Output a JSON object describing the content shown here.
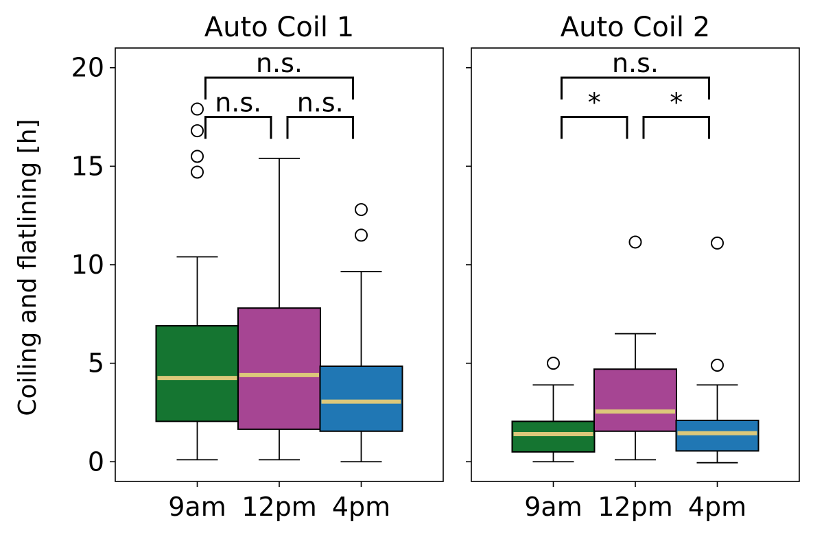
{
  "chart_data": [
    {
      "type": "box",
      "title": "Auto Coil 1",
      "ylabel": "Coiling and flatlining [h]",
      "ylim": [
        -1,
        21
      ],
      "yticks": [
        0,
        5,
        10,
        15,
        20
      ],
      "categories": [
        "9am",
        "12pm",
        "4pm"
      ],
      "box_colors": [
        "#157531",
        "#a64593",
        "#2077b4"
      ],
      "median_color": "#dcc87a",
      "boxes": [
        {
          "category": "9am",
          "whisker_low": 0.1,
          "q1": 2.05,
          "median": 4.25,
          "q3": 6.9,
          "whisker_high": 10.4,
          "outliers": [
            14.7,
            15.5,
            16.8,
            17.9
          ]
        },
        {
          "category": "12pm",
          "whisker_low": 0.1,
          "q1": 1.65,
          "median": 4.4,
          "q3": 7.8,
          "whisker_high": 15.4,
          "outliers": []
        },
        {
          "category": "4pm",
          "whisker_low": 0.0,
          "q1": 1.55,
          "median": 3.05,
          "q3": 4.85,
          "whisker_high": 9.65,
          "outliers": [
            11.5,
            12.8
          ]
        }
      ],
      "brackets": [
        {
          "from": 0,
          "to": 1,
          "y": 17.5,
          "label": "n.s."
        },
        {
          "from": 1,
          "to": 2,
          "y": 17.5,
          "label": "n.s."
        },
        {
          "from": 0,
          "to": 2,
          "y": 19.5,
          "label": "n.s."
        }
      ]
    },
    {
      "type": "box",
      "title": "Auto Coil 2",
      "ylim": [
        -1,
        21
      ],
      "yticks": [
        0,
        5,
        10,
        15,
        20
      ],
      "categories": [
        "9am",
        "12pm",
        "4pm"
      ],
      "box_colors": [
        "#157531",
        "#a64593",
        "#2077b4"
      ],
      "median_color": "#dcc87a",
      "boxes": [
        {
          "category": "9am",
          "whisker_low": 0.0,
          "q1": 0.5,
          "median": 1.4,
          "q3": 2.05,
          "whisker_high": 3.9,
          "outliers": [
            5.0
          ]
        },
        {
          "category": "12pm",
          "whisker_low": 0.1,
          "q1": 1.55,
          "median": 2.55,
          "q3": 4.7,
          "whisker_high": 6.5,
          "outliers": [
            11.15
          ]
        },
        {
          "category": "4pm",
          "whisker_low": -0.05,
          "q1": 0.55,
          "median": 1.45,
          "q3": 2.1,
          "whisker_high": 3.9,
          "outliers": [
            4.9,
            11.1
          ]
        }
      ],
      "brackets": [
        {
          "from": 0,
          "to": 1,
          "y": 17.5,
          "label": "*"
        },
        {
          "from": 1,
          "to": 2,
          "y": 17.5,
          "label": "*"
        },
        {
          "from": 0,
          "to": 2,
          "y": 19.5,
          "label": "n.s."
        }
      ]
    }
  ]
}
